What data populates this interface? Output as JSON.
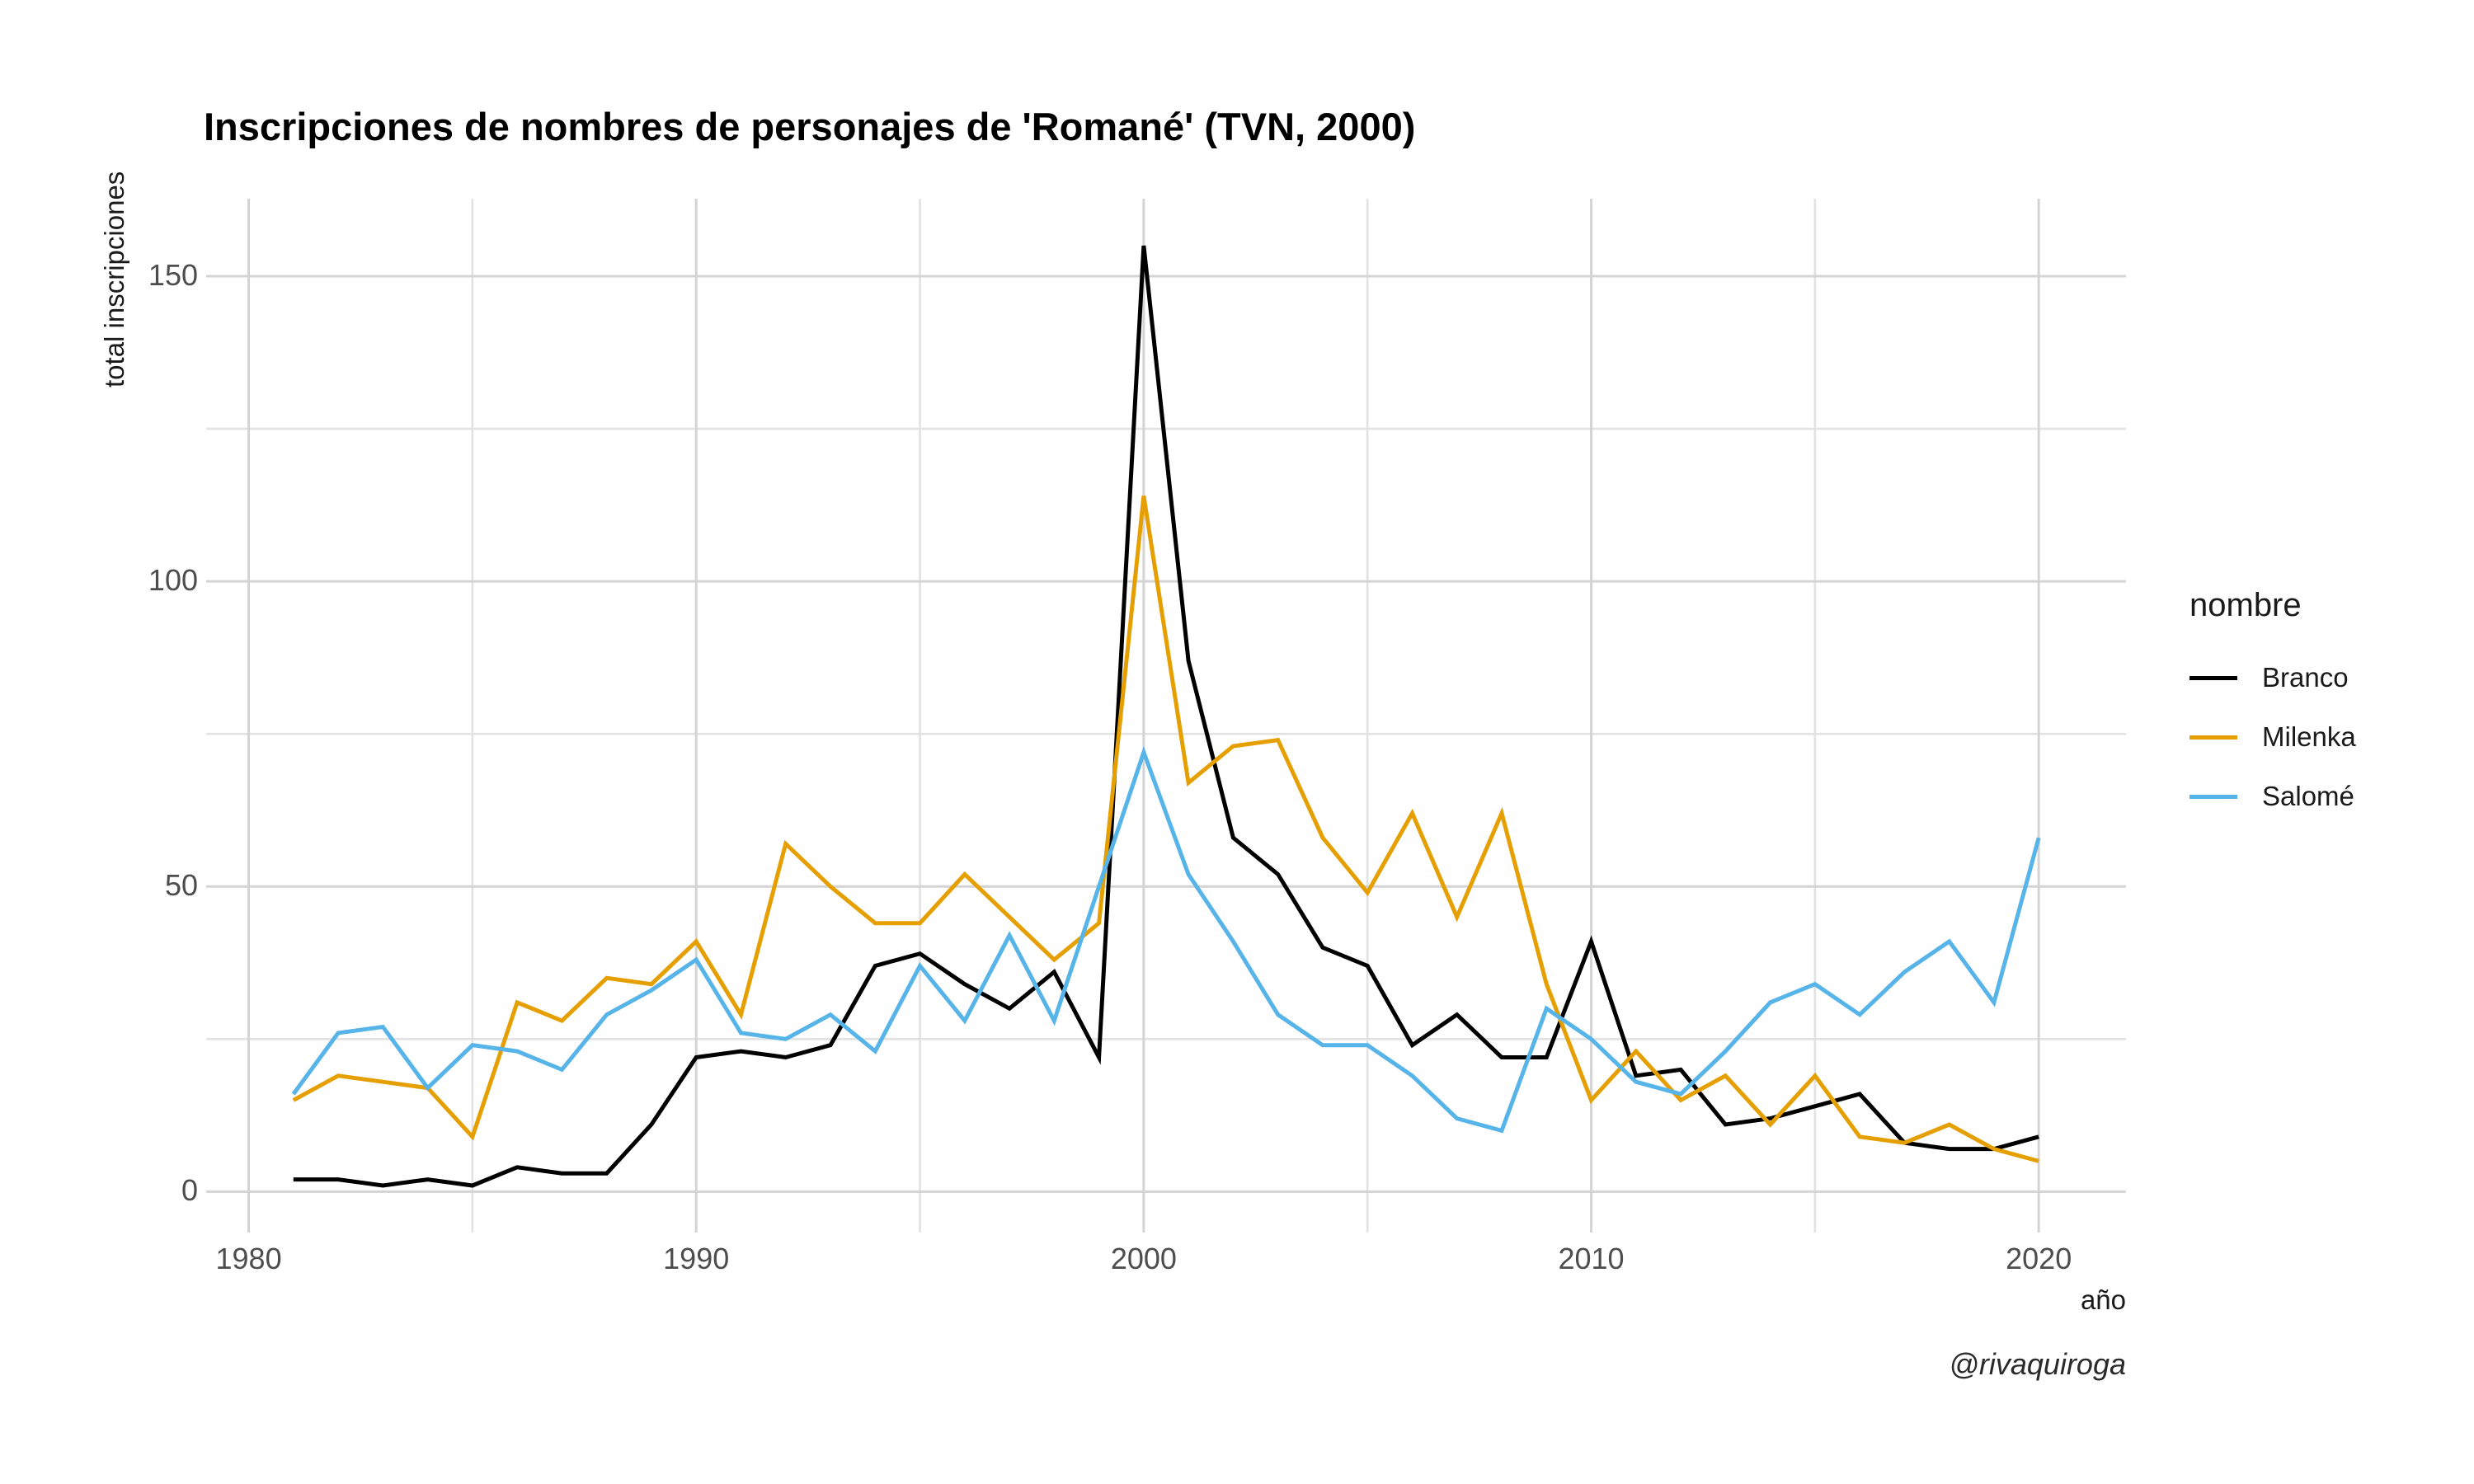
{
  "title": "Inscripciones de nombres de personajes de 'Romané' (TVN, 2000)",
  "caption": "@rivaquiroga",
  "axes": {
    "x_label": "año",
    "y_label": "total inscripciones",
    "x_ticks": [
      1980,
      1990,
      2000,
      2010,
      2020
    ],
    "y_ticks": [
      0,
      50,
      100,
      150
    ]
  },
  "legend": {
    "title": "nombre",
    "items": [
      {
        "label": "Branco",
        "color": "#000000"
      },
      {
        "label": "Milenka",
        "color": "#E69F00"
      },
      {
        "label": "Salomé",
        "color": "#56B4E9"
      }
    ]
  },
  "colors": {
    "background": "#ffffff",
    "grid_major": "#d4d4d4",
    "grid_minor": "#e2e2e2",
    "tick_text": "#4d4d4d"
  },
  "chart_data": {
    "type": "line",
    "title": "Inscripciones de nombres de personajes de 'Romané' (TVN, 2000)",
    "xlabel": "año",
    "ylabel": "total inscripciones",
    "legend_position": "right",
    "grid": true,
    "xlim": [
      1979.05,
      2021.95
    ],
    "ylim": [
      -6.7,
      162.7
    ],
    "x_major": [
      1980,
      1990,
      2000,
      2010,
      2020
    ],
    "x_minor": [
      1985,
      1995,
      2005,
      2015
    ],
    "y_major": [
      0,
      50,
      100,
      150
    ],
    "y_minor": [
      25,
      75,
      125
    ],
    "x": [
      1981,
      1982,
      1983,
      1984,
      1985,
      1986,
      1987,
      1988,
      1989,
      1990,
      1991,
      1992,
      1993,
      1994,
      1995,
      1996,
      1997,
      1998,
      1999,
      2000,
      2001,
      2002,
      2003,
      2004,
      2005,
      2006,
      2007,
      2008,
      2009,
      2010,
      2011,
      2012,
      2013,
      2014,
      2015,
      2016,
      2017,
      2018,
      2019,
      2020
    ],
    "series": [
      {
        "name": "Branco",
        "color": "#000000",
        "values": [
          2,
          2,
          1,
          2,
          1,
          4,
          3,
          3,
          11,
          22,
          23,
          22,
          24,
          37,
          39,
          34,
          30,
          36,
          22,
          155,
          87,
          58,
          52,
          40,
          37,
          24,
          29,
          22,
          22,
          41,
          19,
          20,
          11,
          12,
          14,
          16,
          8,
          7,
          7,
          9
        ]
      },
      {
        "name": "Milenka",
        "color": "#E69F00",
        "values": [
          15,
          19,
          18,
          17,
          9,
          31,
          28,
          35,
          34,
          41,
          29,
          57,
          50,
          44,
          44,
          52,
          45,
          38,
          44,
          114,
          67,
          73,
          74,
          58,
          49,
          62,
          45,
          62,
          34,
          15,
          23,
          15,
          19,
          11,
          19,
          9,
          8,
          11,
          7,
          5
        ]
      },
      {
        "name": "Salomé",
        "color": "#56B4E9",
        "values": [
          16,
          26,
          27,
          17,
          24,
          23,
          20,
          29,
          33,
          38,
          26,
          25,
          29,
          23,
          37,
          28,
          42,
          28,
          50,
          72,
          52,
          41,
          29,
          24,
          24,
          19,
          12,
          10,
          30,
          25,
          18,
          16,
          23,
          31,
          34,
          29,
          36,
          41,
          31,
          58
        ]
      }
    ]
  }
}
